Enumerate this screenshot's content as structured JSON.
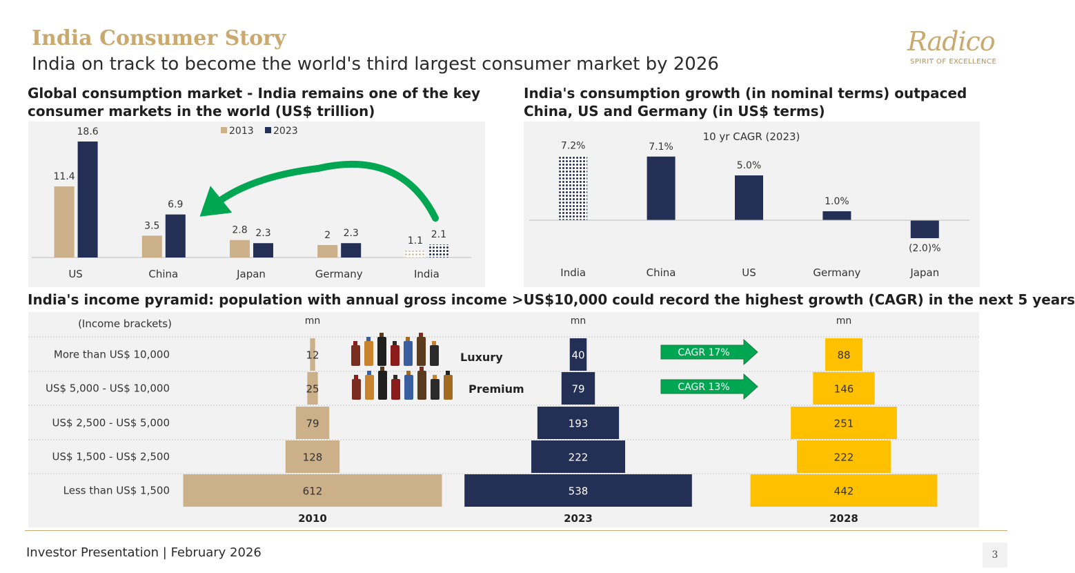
{
  "header": {
    "title": "India Consumer Story",
    "subtitle": "India on track to become the world's third largest consumer market by 2026"
  },
  "logo": {
    "name": "Radico",
    "tagline": "SPIRIT OF EXCELLENCE"
  },
  "colors": {
    "gold": "#c9a96e",
    "tan": "#cbb08a",
    "navy": "#232f55",
    "yellow": "#ffc000",
    "green": "#00a651",
    "panel": "#f2f2f2"
  },
  "left_panel": {
    "title": "Global consumption market - India remains one of the key consumer markets in the world (US$ trillion)"
  },
  "right_panel": {
    "title": "India's consumption growth (in nominal terms) outpaced China, US and Germany (in US$ terms)"
  },
  "pyramid_panel": {
    "title": "India's income pyramid: population with annual gross income >US$10,000 could record the highest growth (CAGR) in the next 5 years"
  },
  "chart_data": [
    {
      "type": "bar",
      "categories": [
        "US",
        "China",
        "Japan",
        "Germany",
        "India"
      ],
      "series": [
        {
          "name": "2013",
          "values": [
            11.4,
            3.5,
            2.8,
            2,
            1.1
          ]
        },
        {
          "name": "2023",
          "values": [
            18.6,
            6.9,
            2.3,
            2.3,
            2.1
          ]
        }
      ],
      "data_labels": {
        "2013": [
          "11.4",
          "3.5",
          "2.8",
          "2",
          "1.1"
        ],
        "2023": [
          "18.6",
          "6.9",
          "2.3",
          "2.3",
          "2.1"
        ]
      },
      "legend": "top-center",
      "ylim": [
        0,
        18.6
      ],
      "annotation": "green curved arrow from India towards Japan",
      "grid": false
    },
    {
      "type": "bar",
      "title": "10 yr CAGR (2023)",
      "categories": [
        "India",
        "China",
        "US",
        "Germany",
        "Japan"
      ],
      "values": [
        7.2,
        7.1,
        5.0,
        1.0,
        -2.0
      ],
      "data_labels": [
        "7.2%",
        "7.1%",
        "5.0%",
        "1.0%",
        "(2.0)%"
      ],
      "unit": "%",
      "ylim": [
        -2.0,
        7.2
      ],
      "grid": false
    },
    {
      "type": "bar",
      "subtype": "population pyramid",
      "row_header": "(Income brackets)",
      "categories": [
        "More than US$ 10,000",
        "US$ 5,000 - US$ 10,000",
        "US$ 2,500 - US$ 5,000",
        "US$ 1,500 - US$ 2,500",
        "Less than US$ 1,500"
      ],
      "series": [
        {
          "name": "2010",
          "unit": "mn",
          "values": [
            12,
            25,
            79,
            128,
            612
          ]
        },
        {
          "name": "2023",
          "unit": "mn",
          "values": [
            40,
            79,
            193,
            222,
            538
          ]
        },
        {
          "name": "2028",
          "unit": "mn",
          "values": [
            88,
            146,
            251,
            222,
            442
          ]
        }
      ],
      "value_labels": {
        "2010": [
          "12",
          "25",
          "79",
          "128",
          "612"
        ],
        "2023": [
          "40",
          "79",
          "193",
          "222",
          "538"
        ],
        "2028": [
          "88",
          "146",
          "251",
          "222",
          "442"
        ]
      },
      "segment_labels": [
        "Luxury",
        "Premium"
      ],
      "arrows": [
        "CAGR 17%",
        "CAGR 13%"
      ]
    }
  ],
  "footer": {
    "text": "Investor Presentation | February 2026",
    "page": "3"
  }
}
